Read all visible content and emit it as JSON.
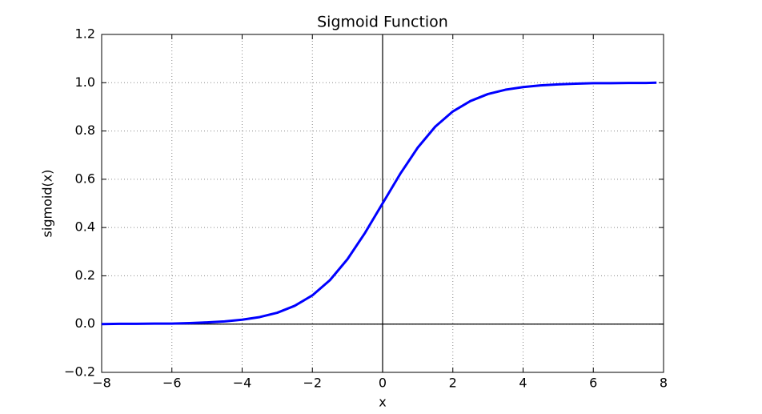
{
  "chart_data": {
    "type": "line",
    "title": "Sigmoid Function",
    "x_label": "x",
    "y_label": "sigmoid(x)",
    "x": [
      -8,
      -7.5,
      -7,
      -6.5,
      -6,
      -5.5,
      -5,
      -4.5,
      -4,
      -3.5,
      -3,
      -2.5,
      -2,
      -1.5,
      -1,
      -0.5,
      0,
      0.5,
      1,
      1.5,
      2,
      2.5,
      3,
      3.5,
      4,
      4.5,
      5,
      5.5,
      6,
      6.5,
      7,
      7.5,
      7.8
    ],
    "values": [
      0.0,
      0.001,
      0.001,
      0.002,
      0.002,
      0.004,
      0.007,
      0.011,
      0.018,
      0.029,
      0.047,
      0.076,
      0.119,
      0.182,
      0.269,
      0.378,
      0.5,
      0.622,
      0.731,
      0.818,
      0.881,
      0.924,
      0.953,
      0.971,
      0.982,
      0.989,
      0.993,
      0.996,
      0.998,
      0.998,
      0.999,
      0.999,
      1.0
    ],
    "color": "#0000ff",
    "xlim": [
      -8,
      8
    ],
    "xticks": [
      {
        "value": -8,
        "label": "−8"
      },
      {
        "value": -6,
        "label": "−6"
      },
      {
        "value": -4,
        "label": "−4"
      },
      {
        "value": -2,
        "label": "−2"
      },
      0,
      2,
      4,
      6,
      8
    ],
    "ylim": [
      -0.2,
      1.2
    ],
    "yticks": [
      {
        "value": -0.2,
        "label": "−0.2"
      },
      {
        "value": 0,
        "label": "0.0"
      },
      0.2,
      0.4,
      0.6,
      0.8,
      {
        "value": 1,
        "label": "1.0"
      },
      1.2
    ],
    "grid": true,
    "origin_lines": true
  }
}
